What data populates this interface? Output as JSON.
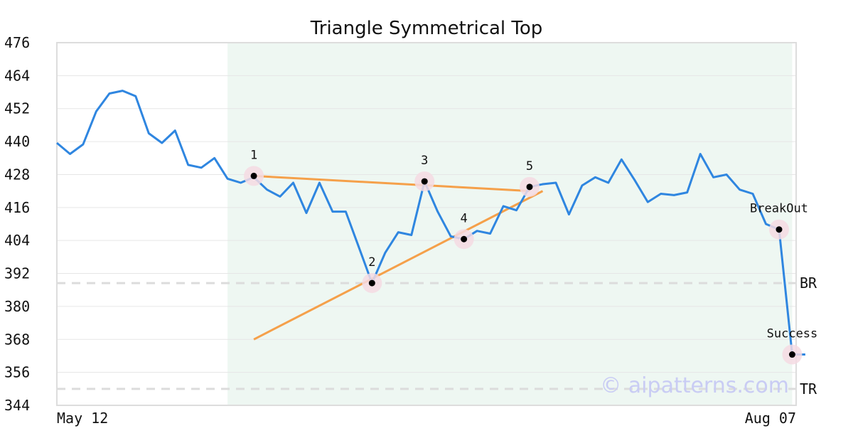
{
  "chart_data": {
    "type": "line",
    "title": "Triangle Symmetrical Top",
    "xlabel": "",
    "ylabel": "",
    "ylim": [
      344,
      476
    ],
    "yticks": [
      476,
      464,
      452,
      440,
      428,
      416,
      404,
      392,
      380,
      368,
      356,
      344
    ],
    "xlim": [
      0,
      56.3
    ],
    "x_tick_labels": [
      {
        "x": 0,
        "label": "May 12"
      },
      {
        "x": 56.3,
        "label": "Aug 07"
      }
    ],
    "grid": "horizontal",
    "shaded_region": {
      "x_start": 13,
      "x_end": 56
    },
    "series": [
      {
        "color": "#2f86e0",
        "values": [
          439.5,
          435.5,
          439,
          451,
          457.5,
          458.5,
          456.5,
          443,
          439.5,
          444,
          431.5,
          430.5,
          434,
          426.5,
          425,
          427,
          422.5,
          420,
          425,
          414,
          425,
          414.5,
          414.5,
          401.5,
          388.5,
          399.5,
          407,
          406,
          425.5,
          414.5,
          405.5,
          404.5,
          407.5,
          406.5,
          416.5,
          415,
          423.5,
          424.5,
          425,
          413.5,
          424,
          427,
          425,
          433.5,
          426,
          418,
          421,
          420.5,
          421.5,
          435.5,
          427,
          428,
          422.5,
          421,
          410,
          408,
          362.5,
          362.5
        ]
      }
    ],
    "trendlines": [
      {
        "name": "upper",
        "color": "#f5a04a",
        "from": [
          15,
          427.5
        ],
        "to": [
          36,
          422
        ]
      },
      {
        "name": "lower",
        "color": "#f5a04a",
        "from": [
          15,
          368
        ],
        "to": [
          37,
          422
        ]
      }
    ],
    "reference_lines": [
      {
        "label": "BR",
        "y": 388.5
      },
      {
        "label": "TR",
        "y": 350
      }
    ],
    "points": [
      {
        "label": "1",
        "x": 15,
        "y": 427.5
      },
      {
        "label": "2",
        "x": 24,
        "y": 388.5
      },
      {
        "label": "3",
        "x": 28,
        "y": 425.5
      },
      {
        "label": "4",
        "x": 31,
        "y": 404.5
      },
      {
        "label": "5",
        "x": 36,
        "y": 423.5
      },
      {
        "label": "BreakOut",
        "x": 55,
        "y": 408
      },
      {
        "label": "Success",
        "x": 56,
        "y": 362.5
      }
    ],
    "watermark": "© aipatterns.com"
  }
}
